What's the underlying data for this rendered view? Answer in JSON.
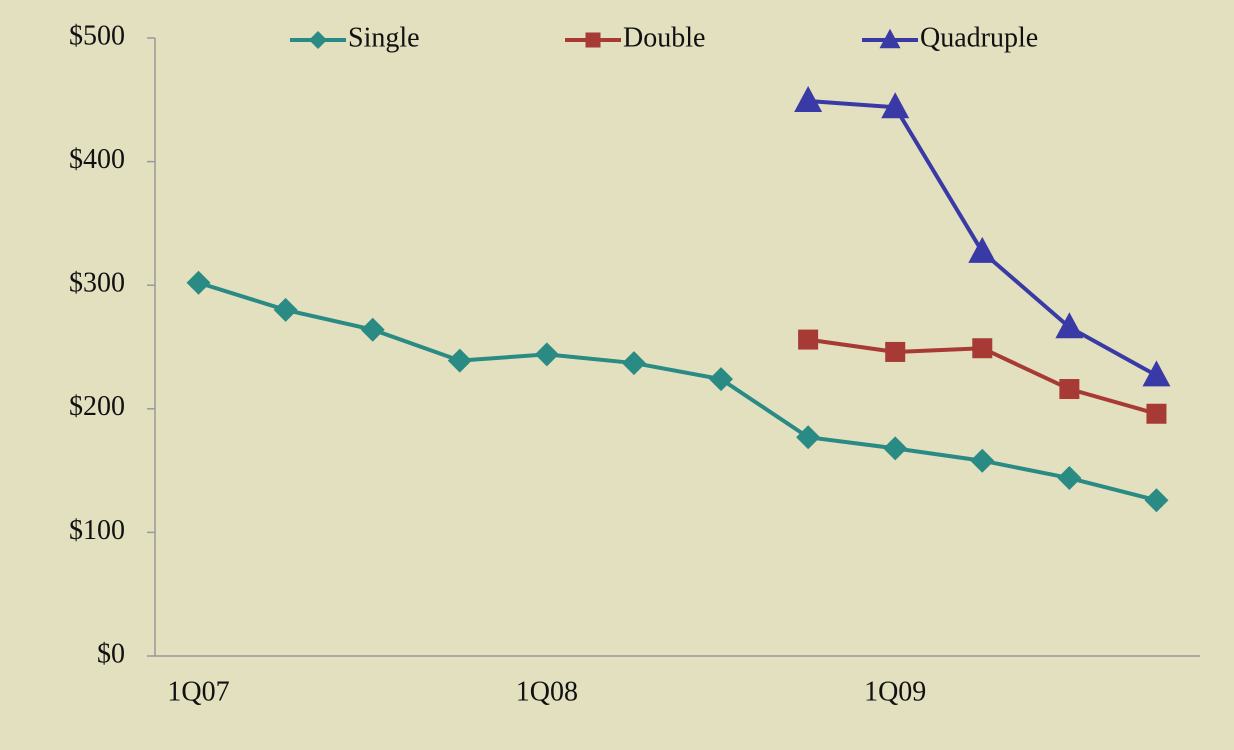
{
  "chart_data": {
    "type": "line",
    "categories": [
      "1Q07",
      null,
      null,
      null,
      "1Q08",
      null,
      null,
      null,
      "1Q09",
      null,
      null,
      null
    ],
    "series": [
      {
        "name": "Single",
        "color": "#2a8a84",
        "marker": "diamond",
        "values": [
          302,
          280,
          264,
          239,
          244,
          237,
          224,
          177,
          168,
          158,
          144,
          126
        ]
      },
      {
        "name": "Double",
        "color": "#a83a35",
        "marker": "square",
        "values": [
          null,
          null,
          null,
          null,
          null,
          null,
          null,
          256,
          246,
          249,
          216,
          196
        ]
      },
      {
        "name": "Quadruple",
        "color": "#3a3aa6",
        "marker": "triangle",
        "values": [
          null,
          null,
          null,
          null,
          null,
          null,
          null,
          449,
          444,
          327,
          266,
          227
        ]
      }
    ],
    "ylim": [
      0,
      500
    ],
    "yticks": [
      {
        "value": 0,
        "label": "$0"
      },
      {
        "value": 100,
        "label": "$100"
      },
      {
        "value": 200,
        "label": "$200"
      },
      {
        "value": 300,
        "label": "$300"
      },
      {
        "value": 400,
        "label": "$400"
      },
      {
        "value": 500,
        "label": "$500"
      }
    ],
    "grid": false,
    "legend": "top"
  }
}
